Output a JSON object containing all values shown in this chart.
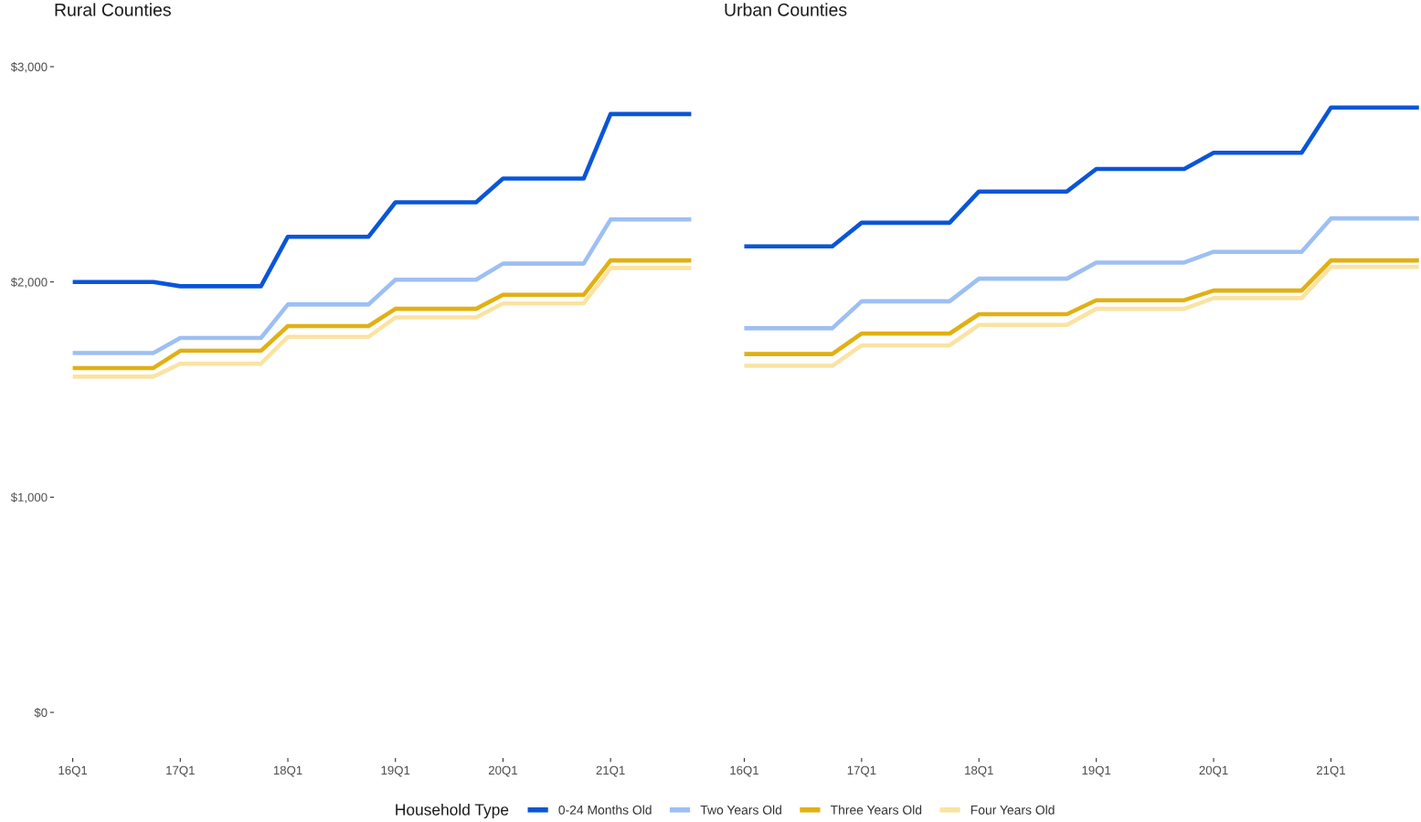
{
  "chart_data": [
    {
      "type": "line",
      "title": "Rural Counties",
      "legend_title": "Household Type",
      "legend": "bottom",
      "categories": [
        "16Q1",
        null,
        null,
        null,
        "17Q1",
        null,
        null,
        null,
        "18Q1",
        null,
        null,
        null,
        "19Q1",
        null,
        null,
        null,
        "20Q1",
        null,
        null,
        null,
        "21Q1",
        null,
        null,
        null
      ],
      "ylim": [
        0,
        3000
      ],
      "yticks": [
        {
          "value": 0,
          "label": "$0"
        },
        {
          "value": 1000,
          "label": "$1,000"
        },
        {
          "value": 2000,
          "label": "$2,000"
        },
        {
          "value": 3000,
          "label": "$3,000"
        }
      ],
      "series": [
        {
          "name": "0-24 Months Old",
          "color": "#0a55d8",
          "values": [
            2000,
            2000,
            2000,
            2000,
            1980,
            1980,
            1980,
            1980,
            2210,
            2210,
            2210,
            2210,
            2370,
            2370,
            2370,
            2370,
            2480,
            2480,
            2480,
            2480,
            2780,
            2780,
            2780,
            2780
          ]
        },
        {
          "name": "Two Years Old",
          "color": "#9dbff3",
          "values": [
            1670,
            1670,
            1670,
            1670,
            1740,
            1740,
            1740,
            1740,
            1895,
            1895,
            1895,
            1895,
            2010,
            2010,
            2010,
            2010,
            2085,
            2085,
            2085,
            2085,
            2290,
            2290,
            2290,
            2290
          ]
        },
        {
          "name": "Three Years Old",
          "color": "#e1b012",
          "values": [
            1600,
            1600,
            1600,
            1600,
            1680,
            1680,
            1680,
            1680,
            1795,
            1795,
            1795,
            1795,
            1875,
            1875,
            1875,
            1875,
            1940,
            1940,
            1940,
            1940,
            2100,
            2100,
            2100,
            2100
          ]
        },
        {
          "name": "Four Years Old",
          "color": "#fae3a2",
          "values": [
            1560,
            1560,
            1560,
            1560,
            1620,
            1620,
            1620,
            1620,
            1745,
            1745,
            1745,
            1745,
            1835,
            1835,
            1835,
            1835,
            1900,
            1900,
            1900,
            1900,
            2065,
            2065,
            2065,
            2065
          ]
        }
      ]
    },
    {
      "type": "line",
      "title": "Urban Counties",
      "tick_labels": "x",
      "categories": [
        "16Q1",
        null,
        null,
        null,
        "17Q1",
        null,
        null,
        null,
        "18Q1",
        null,
        null,
        null,
        "19Q1",
        null,
        null,
        null,
        "20Q1",
        null,
        null,
        null,
        "21Q1",
        null,
        null,
        null
      ],
      "ylim": [
        0,
        3000
      ],
      "series": [
        {
          "name": "0-24 Months Old",
          "color": "#0a55d8",
          "values": [
            2165,
            2165,
            2165,
            2165,
            2275,
            2275,
            2275,
            2275,
            2420,
            2420,
            2420,
            2420,
            2525,
            2525,
            2525,
            2525,
            2600,
            2600,
            2600,
            2600,
            2810,
            2810,
            2810,
            2810
          ]
        },
        {
          "name": "Two Years Old",
          "color": "#9dbff3",
          "values": [
            1785,
            1785,
            1785,
            1785,
            1910,
            1910,
            1910,
            1910,
            2015,
            2015,
            2015,
            2015,
            2090,
            2090,
            2090,
            2090,
            2140,
            2140,
            2140,
            2140,
            2295,
            2295,
            2295,
            2295
          ]
        },
        {
          "name": "Three Years Old",
          "color": "#e1b012",
          "values": [
            1665,
            1665,
            1665,
            1665,
            1760,
            1760,
            1760,
            1760,
            1850,
            1850,
            1850,
            1850,
            1915,
            1915,
            1915,
            1915,
            1960,
            1960,
            1960,
            1960,
            2100,
            2100,
            2100,
            2100
          ]
        },
        {
          "name": "Four Years Old",
          "color": "#fae3a2",
          "values": [
            1610,
            1610,
            1610,
            1610,
            1705,
            1705,
            1705,
            1705,
            1800,
            1800,
            1800,
            1800,
            1875,
            1875,
            1875,
            1875,
            1925,
            1925,
            1925,
            1925,
            2070,
            2070,
            2070,
            2070
          ]
        }
      ]
    }
  ]
}
